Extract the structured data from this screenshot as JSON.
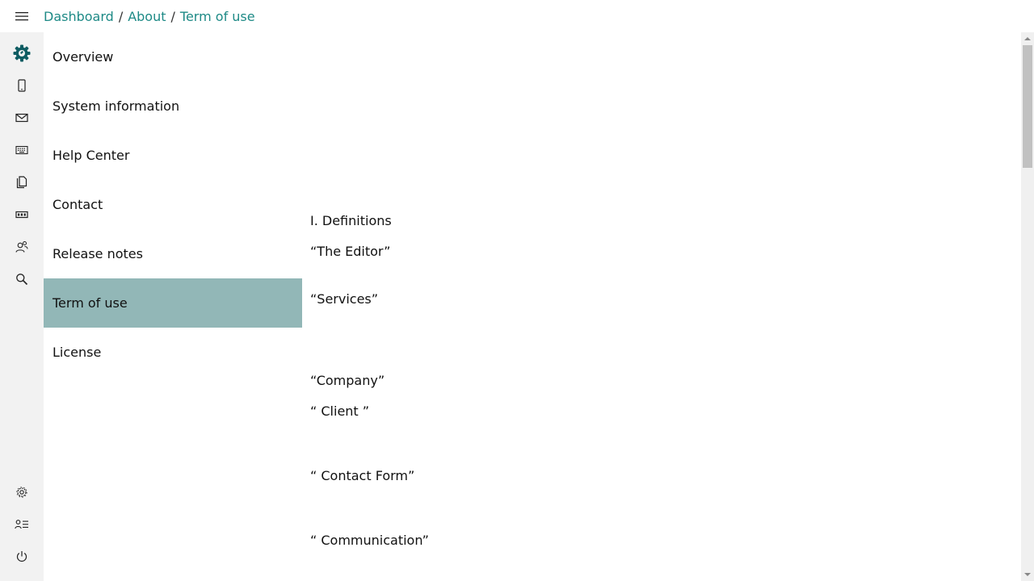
{
  "header": {
    "menu_icon": "hamburger-icon",
    "breadcrumb": [
      "Dashboard",
      "About",
      "Term of use"
    ],
    "separator": "/"
  },
  "rail": {
    "top_items": [
      "logo-gear-icon",
      "phone-icon",
      "mail-icon",
      "keyboard-icon",
      "copy-icon",
      "badge-icon",
      "users-icon",
      "search-icon"
    ],
    "bottom_items": [
      "settings-icon",
      "account-list-icon",
      "power-icon"
    ],
    "accent_color": "#0f5d63"
  },
  "nav": {
    "active_index": 5,
    "active_color": "#92b7b7",
    "items": [
      "Overview",
      "System information",
      "Help Center",
      "Contact",
      "Release notes",
      "Term of use",
      "License"
    ]
  },
  "content": {
    "lines": [
      "I. Definitions",
      "“The Editor”",
      "“Services”",
      "“Company”",
      "“ Client ”",
      "“ Contact Form”",
      "“ Communication”"
    ]
  }
}
